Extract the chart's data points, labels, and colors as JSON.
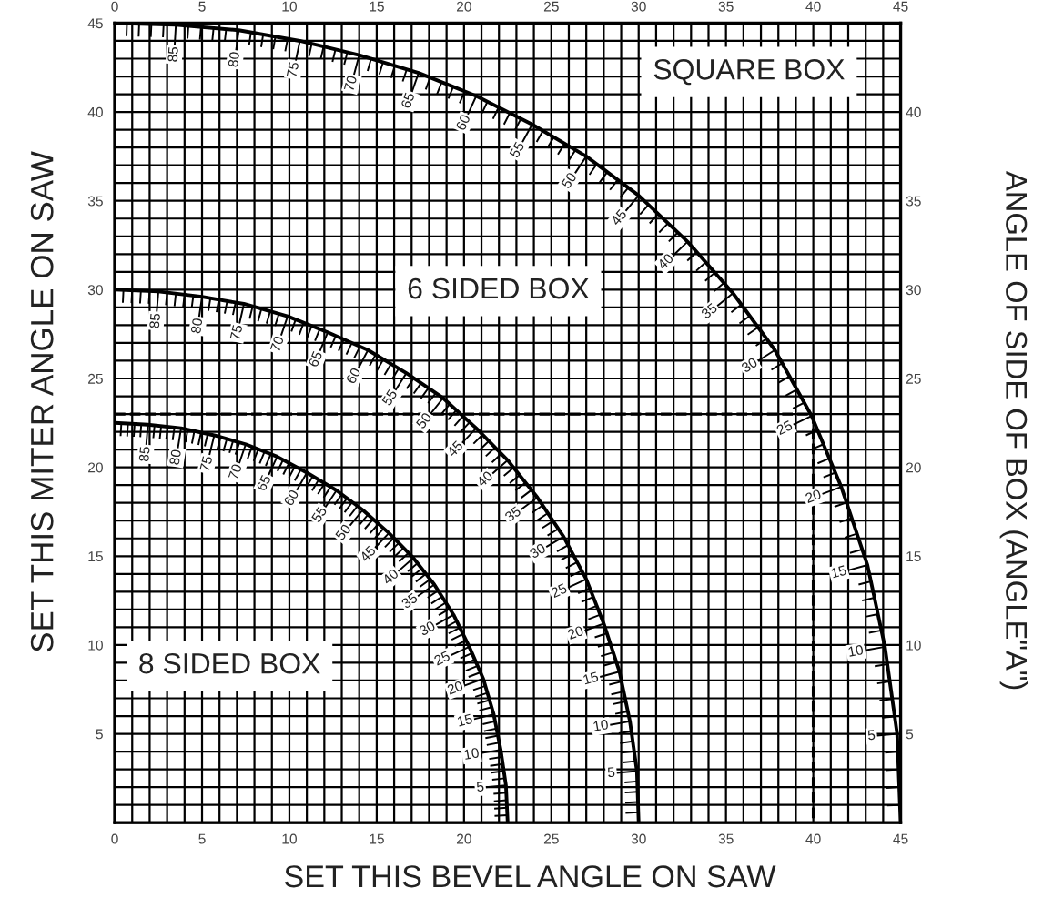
{
  "chart_data": {
    "type": "line",
    "xlabel": "SET THIS BEVEL ANGLE ON SAW",
    "ylabel": "SET THIS MITER ANGLE ON SAW",
    "y2label": "ANGLE OF SIDE OF BOX (ANGLE\"A\")",
    "xlim": [
      0,
      45
    ],
    "ylim": [
      0,
      45
    ],
    "x2lim": [
      0,
      45
    ],
    "y2lim": [
      0,
      45
    ],
    "xticks": [
      0,
      {
        "value": 1,
        "label": null
      },
      {
        "value": 2,
        "label": null
      },
      {
        "value": 3,
        "label": null
      },
      {
        "value": 4,
        "label": null
      },
      5,
      {
        "value": 6,
        "label": null
      },
      {
        "value": 7,
        "label": null
      },
      {
        "value": 8,
        "label": null
      },
      {
        "value": 9,
        "label": null
      },
      10,
      {
        "value": 11,
        "label": null
      },
      {
        "value": 12,
        "label": null
      },
      {
        "value": 13,
        "label": null
      },
      {
        "value": 14,
        "label": null
      },
      15,
      {
        "value": 16,
        "label": null
      },
      {
        "value": 17,
        "label": null
      },
      {
        "value": 18,
        "label": null
      },
      {
        "value": 19,
        "label": null
      },
      20,
      {
        "value": 21,
        "label": null
      },
      {
        "value": 22,
        "label": null
      },
      {
        "value": 23,
        "label": null
      },
      {
        "value": 24,
        "label": null
      },
      25,
      {
        "value": 26,
        "label": null
      },
      {
        "value": 27,
        "label": null
      },
      {
        "value": 28,
        "label": null
      },
      {
        "value": 29,
        "label": null
      },
      30,
      {
        "value": 31,
        "label": null
      },
      {
        "value": 32,
        "label": null
      },
      {
        "value": 33,
        "label": null
      },
      {
        "value": 34,
        "label": null
      },
      35,
      {
        "value": 36,
        "label": null
      },
      {
        "value": 37,
        "label": null
      },
      {
        "value": 38,
        "label": null
      },
      {
        "value": 39,
        "label": null
      },
      40,
      {
        "value": 41,
        "label": null
      },
      {
        "value": 42,
        "label": null
      },
      {
        "value": 43,
        "label": null
      },
      {
        "value": 44,
        "label": null
      },
      45
    ],
    "yticks": [
      {
        "value": 0,
        "label": null
      },
      {
        "value": 1,
        "label": null
      },
      {
        "value": 2,
        "label": null
      },
      {
        "value": 3,
        "label": null
      },
      {
        "value": 4,
        "label": null
      },
      5,
      {
        "value": 6,
        "label": null
      },
      {
        "value": 7,
        "label": null
      },
      {
        "value": 8,
        "label": null
      },
      {
        "value": 9,
        "label": null
      },
      10,
      {
        "value": 11,
        "label": null
      },
      {
        "value": 12,
        "label": null
      },
      {
        "value": 13,
        "label": null
      },
      {
        "value": 14,
        "label": null
      },
      15,
      {
        "value": 16,
        "label": null
      },
      {
        "value": 17,
        "label": null
      },
      {
        "value": 18,
        "label": null
      },
      {
        "value": 19,
        "label": null
      },
      20,
      {
        "value": 21,
        "label": null
      },
      {
        "value": 22,
        "label": null
      },
      {
        "value": 23,
        "label": null
      },
      {
        "value": 24,
        "label": null
      },
      25,
      {
        "value": 26,
        "label": null
      },
      {
        "value": 27,
        "label": null
      },
      {
        "value": 28,
        "label": null
      },
      {
        "value": 29,
        "label": null
      },
      30,
      {
        "value": 31,
        "label": null
      },
      {
        "value": 32,
        "label": null
      },
      {
        "value": 33,
        "label": null
      },
      {
        "value": 34,
        "label": null
      },
      35,
      {
        "value": 36,
        "label": null
      },
      {
        "value": 37,
        "label": null
      },
      {
        "value": 38,
        "label": null
      },
      {
        "value": 39,
        "label": null
      },
      40,
      {
        "value": 41,
        "label": null
      },
      {
        "value": 42,
        "label": null
      },
      {
        "value": 43,
        "label": null
      },
      {
        "value": 44,
        "label": null
      },
      45
    ],
    "x2ticks": [
      0,
      5,
      10,
      15,
      20,
      25,
      30,
      35,
      40,
      45
    ],
    "y2ticks": [
      5,
      10,
      15,
      20,
      25,
      30,
      35,
      40
    ],
    "grid": true,
    "series": [
      {
        "name": "SQUARE BOX",
        "color": "#000000",
        "x": [
          45,
          44.8,
          44.1,
          43.1,
          41.6,
          39.9,
          37.8,
          35.4,
          32.8,
          30,
          27,
          23.9,
          20.7,
          17.4,
          14,
          10.6,
          7.1,
          3.5,
          0
        ],
        "values": [
          0,
          5,
          9.9,
          14.5,
          18.9,
          22.9,
          26.6,
          29.8,
          32.7,
          35.3,
          37.5,
          39.3,
          40.9,
          42.2,
          43.2,
          44,
          44.6,
          44.9,
          45
        ]
      },
      {
        "name": "6 SIDED BOX",
        "color": "#000000",
        "x": [
          30,
          29.9,
          29.5,
          28.9,
          28,
          27,
          25.7,
          24.2,
          22.5,
          20.7,
          18.8,
          16.7,
          14.5,
          12.2,
          9.9,
          7.4,
          5,
          2.5,
          0
        ],
        "values": [
          0,
          2.9,
          5.7,
          8.5,
          11.2,
          13.7,
          16.1,
          18.3,
          20.4,
          22.2,
          23.9,
          25.3,
          26.6,
          27.6,
          28.5,
          29.2,
          29.6,
          29.9,
          30
        ]
      },
      {
        "name": "8 SIDED BOX",
        "color": "#000000",
        "x": [
          22.5,
          22.4,
          22.1,
          21.7,
          21.1,
          20.3,
          19.4,
          18.3,
          17.1,
          15.7,
          14.2,
          12.7,
          11,
          9.3,
          7.5,
          5.7,
          3.8,
          1.9,
          0
        ],
        "values": [
          0,
          2.1,
          4.1,
          6.1,
          8.1,
          9.9,
          11.7,
          13.4,
          14.9,
          16.3,
          17.6,
          18.7,
          19.7,
          20.6,
          21.3,
          21.8,
          22.2,
          22.4,
          22.5
        ]
      },
      {
        "color": "#000000",
        "line_style": "dashed",
        "x": [
          0,
          40,
          40
        ],
        "values": [
          23,
          23,
          0
        ]
      }
    ],
    "annotations": [
      {
        "text": "5",
        "x": 44.8,
        "y": 5
      },
      {
        "text": "10",
        "x": 44.1,
        "y": 9.9
      },
      {
        "text": "15",
        "x": 43.1,
        "y": 14.5
      },
      {
        "text": "20",
        "x": 41.6,
        "y": 18.9
      },
      {
        "text": "25",
        "x": 39.9,
        "y": 22.9
      },
      {
        "text": "30",
        "x": 37.8,
        "y": 26.6
      },
      {
        "text": "35",
        "x": 35.4,
        "y": 29.8
      },
      {
        "text": "40",
        "x": 32.8,
        "y": 32.7
      },
      {
        "text": "45",
        "x": 30,
        "y": 35.3
      },
      {
        "text": "50",
        "x": 27,
        "y": 37.5
      },
      {
        "text": "55",
        "x": 23.9,
        "y": 39.3
      },
      {
        "text": "60",
        "x": 20.7,
        "y": 40.9
      },
      {
        "text": "65",
        "x": 17.4,
        "y": 42.2
      },
      {
        "text": "70",
        "x": 14,
        "y": 43.2
      },
      {
        "text": "75",
        "x": 10.6,
        "y": 44
      },
      {
        "text": "80",
        "x": 7.1,
        "y": 44.6
      },
      {
        "text": "85",
        "x": 3.5,
        "y": 44.9
      },
      {
        "text": "5",
        "x": 29.9,
        "y": 2.9
      },
      {
        "text": "10",
        "x": 29.5,
        "y": 5.7
      },
      {
        "text": "15",
        "x": 28.9,
        "y": 8.5
      },
      {
        "text": "20",
        "x": 28,
        "y": 11.2
      },
      {
        "text": "25",
        "x": 27,
        "y": 13.7
      },
      {
        "text": "30",
        "x": 25.7,
        "y": 16.1
      },
      {
        "text": "35",
        "x": 24.2,
        "y": 18.3
      },
      {
        "text": "40",
        "x": 22.5,
        "y": 20.4
      },
      {
        "text": "45",
        "x": 20.7,
        "y": 22.2
      },
      {
        "text": "50",
        "x": 18.8,
        "y": 23.9
      },
      {
        "text": "55",
        "x": 16.7,
        "y": 25.3
      },
      {
        "text": "60",
        "x": 14.5,
        "y": 26.6
      },
      {
        "text": "65",
        "x": 12.2,
        "y": 27.6
      },
      {
        "text": "70",
        "x": 9.9,
        "y": 28.5
      },
      {
        "text": "75",
        "x": 7.4,
        "y": 29.2
      },
      {
        "text": "80",
        "x": 5,
        "y": 29.6
      },
      {
        "text": "85",
        "x": 2.5,
        "y": 29.9
      },
      {
        "text": "5",
        "x": 22.4,
        "y": 2.1
      },
      {
        "text": "10",
        "x": 22.1,
        "y": 4.1
      },
      {
        "text": "15",
        "x": 21.7,
        "y": 6.1
      },
      {
        "text": "20",
        "x": 21.1,
        "y": 8.1
      },
      {
        "text": "25",
        "x": 20.3,
        "y": 9.9
      },
      {
        "text": "30",
        "x": 19.4,
        "y": 11.7
      },
      {
        "text": "35",
        "x": 18.3,
        "y": 13.4
      },
      {
        "text": "40",
        "x": 17.1,
        "y": 14.9
      },
      {
        "text": "45",
        "x": 15.7,
        "y": 16.3
      },
      {
        "text": "50",
        "x": 14.2,
        "y": 17.6
      },
      {
        "text": "55",
        "x": 12.7,
        "y": 18.7
      },
      {
        "text": "60",
        "x": 11,
        "y": 19.7
      },
      {
        "text": "65",
        "x": 9.3,
        "y": 20.6
      },
      {
        "text": "70",
        "x": 7.5,
        "y": 21.3
      },
      {
        "text": "75",
        "x": 5.7,
        "y": 21.8
      },
      {
        "text": "80",
        "x": 3.8,
        "y": 22.2
      },
      {
        "text": "85",
        "x": 1.9,
        "y": 22.4
      }
    ]
  }
}
